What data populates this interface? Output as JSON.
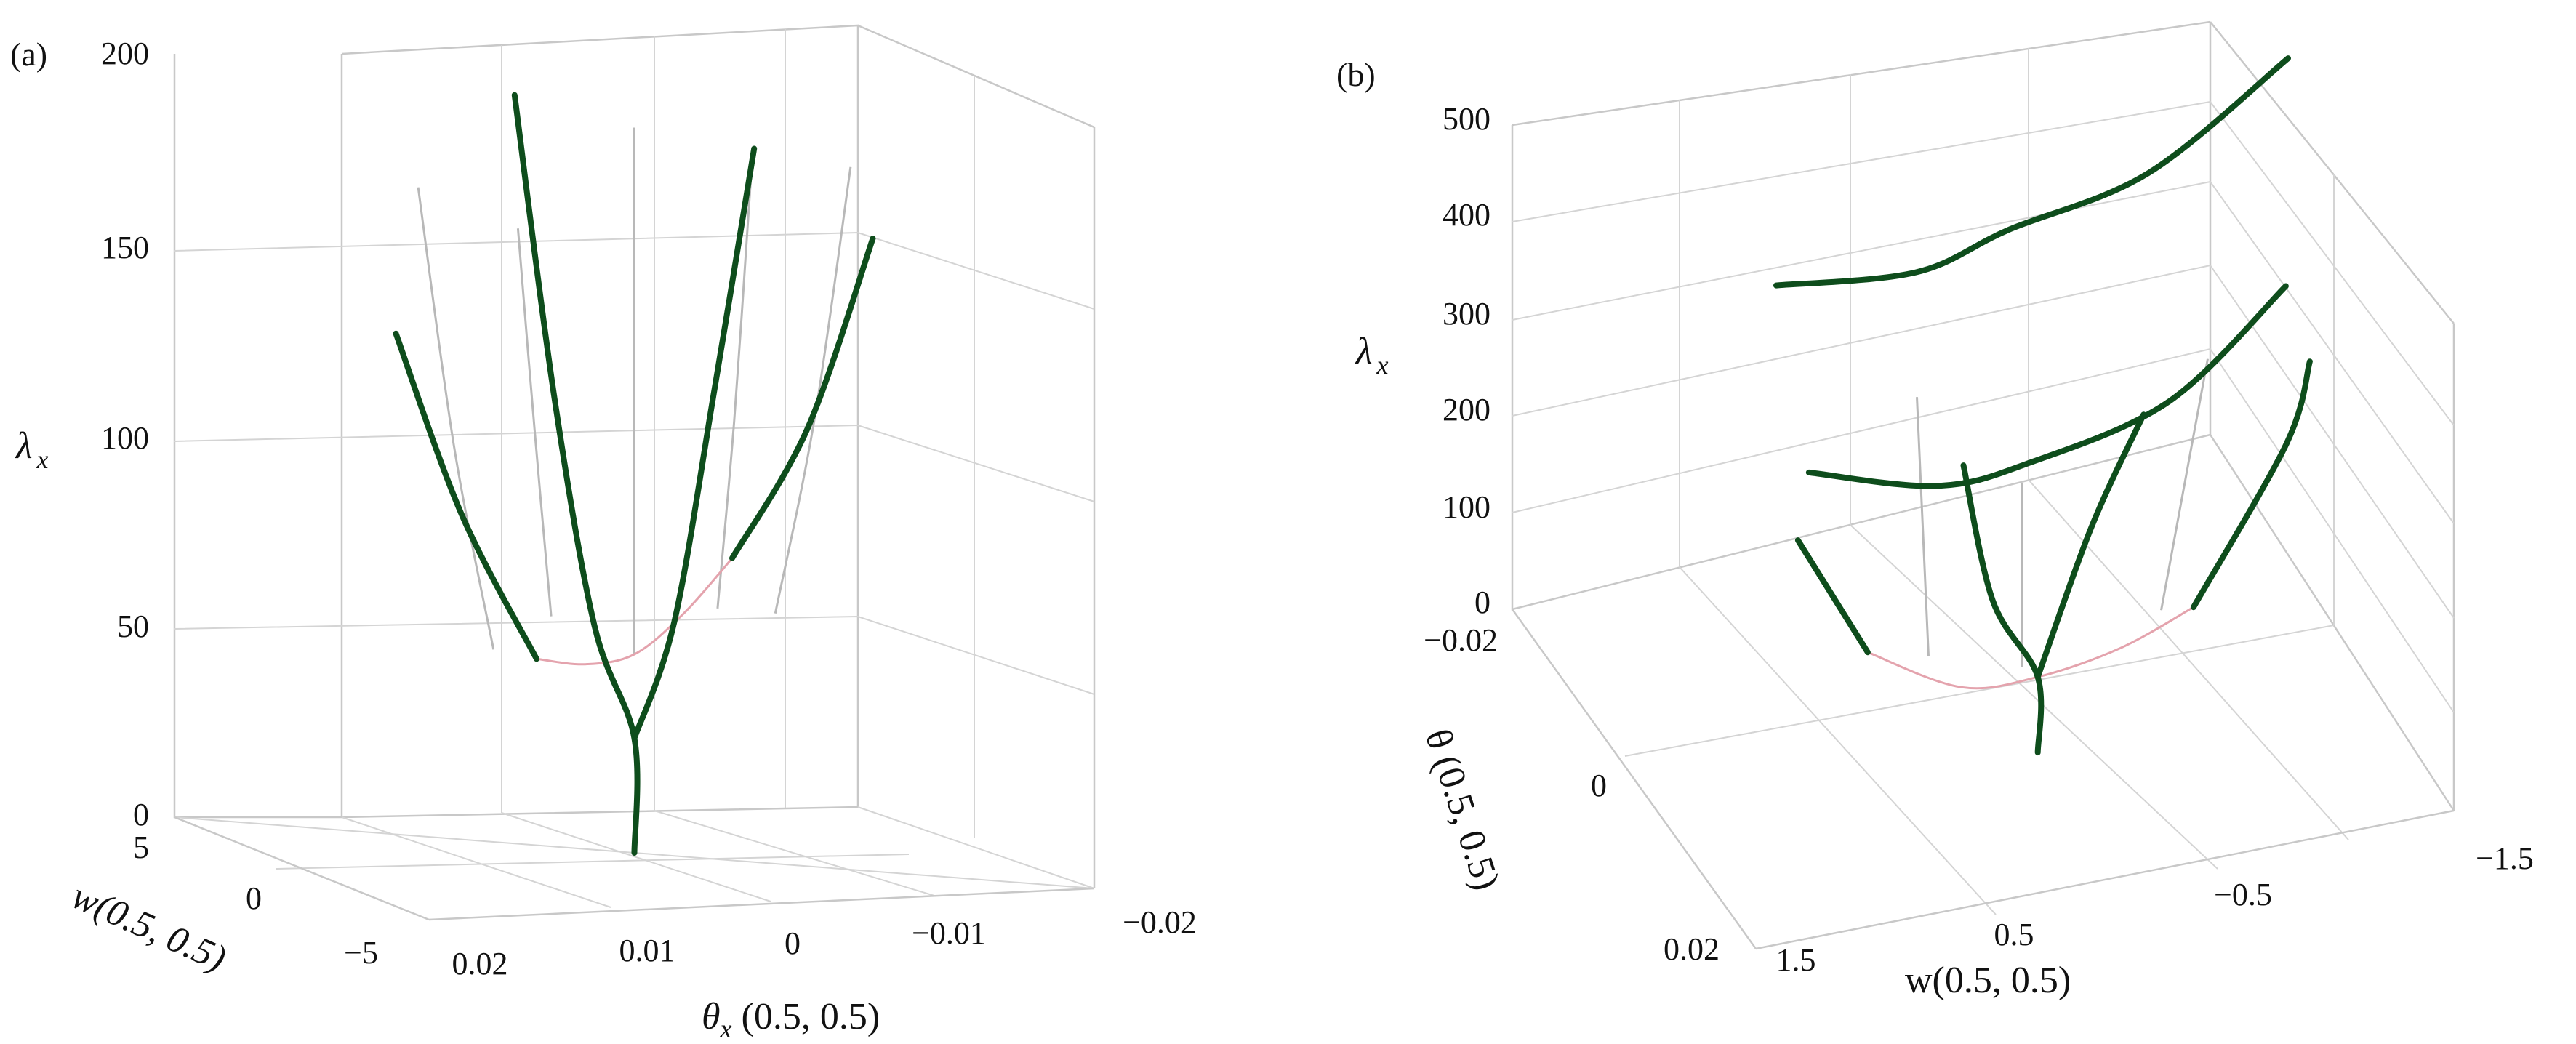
{
  "chart_data": [
    {
      "type": "line",
      "panel_label": "(a)",
      "zlabel_main": "λ",
      "zlabel_sub": "x",
      "xlabel": "θ",
      "xlabel_sub": "x",
      "xlabel_rest": " (0.5, 0.5)",
      "ylabel": "w(0.5, 0.5)",
      "z_ticks": [
        "0",
        "50",
        "100",
        "150",
        "200"
      ],
      "x_ticks": [
        "0.02",
        "0.01",
        "0",
        "−0.01",
        "−0.02"
      ],
      "y_ticks": [
        "5",
        "0",
        "−5"
      ],
      "zlim": [
        0,
        200
      ],
      "xlim": [
        0.02,
        -0.02
      ],
      "ylim": [
        5,
        -5
      ],
      "grid": true,
      "series": [
        {
          "style": "bold",
          "points": [
            [
              0,
              0,
              0
            ],
            [
              0,
              0,
              30
            ],
            [
              0.0024,
              0,
              60
            ],
            [
              0.0048,
              0,
              120
            ],
            [
              0.0072,
              0,
              200
            ]
          ]
        },
        {
          "style": "bold",
          "points": [
            [
              0,
              0,
              30
            ],
            [
              -0.0024,
              0,
              60
            ],
            [
              -0.0048,
              0,
              120
            ],
            [
              -0.0072,
              0,
              183
            ]
          ]
        },
        {
          "style": "bold",
          "points": [
            [
              0.012,
              4,
              64
            ],
            [
              0.015,
              3,
              100
            ],
            [
              0.0174,
              2,
              145
            ]
          ]
        },
        {
          "style": "bold",
          "points": [
            [
              -0.012,
              -4,
              64
            ],
            [
              -0.015,
              -3,
              100
            ],
            [
              -0.0174,
              -2,
              152
            ]
          ]
        },
        {
          "style": "thin",
          "points": [
            [
              0.01,
              1,
              58
            ],
            [
              0.0116,
              0.5,
              110
            ],
            [
              0.013,
              0,
              177
            ]
          ]
        },
        {
          "style": "thin",
          "points": [
            [
              -0.01,
              -1,
              58
            ],
            [
              -0.0116,
              -0.5,
              110
            ],
            [
              -0.013,
              0,
              177
            ]
          ]
        },
        {
          "style": "thin",
          "points": [
            [
              0,
              0,
              52
            ],
            [
              0,
              0,
              190
            ]
          ]
        },
        {
          "style": "thin",
          "points": [
            [
              0.005,
              0,
              63
            ],
            [
              0.006,
              0,
              112
            ],
            [
              0.007,
              0,
              165
            ]
          ]
        },
        {
          "style": "thin",
          "points": [
            [
              -0.005,
              0,
              63
            ],
            [
              -0.006,
              0,
              112
            ],
            [
              -0.007,
              0,
              175
            ]
          ]
        },
        {
          "style": "pink",
          "points": [
            [
              0.012,
              4,
              64
            ],
            [
              0.006,
              2,
              56
            ],
            [
              0,
              0,
              52
            ],
            [
              -0.006,
              -2,
              56
            ],
            [
              -0.012,
              -4,
              64
            ]
          ]
        }
      ]
    },
    {
      "type": "line",
      "panel_label": "(b)",
      "zlabel_main": "λ",
      "zlabel_sub": "x",
      "xlabel": "w(0.5, 0.5)",
      "ylabel": "θ (0.5, 0.5)",
      "z_ticks": [
        "0",
        "100",
        "200",
        "300",
        "400",
        "500"
      ],
      "x_ticks": [
        "1.5",
        "0.5",
        "−0.5",
        "−1.5"
      ],
      "y_ticks": [
        "−0.02",
        "0",
        "0.02"
      ],
      "zlim": [
        0,
        500
      ],
      "xlim": [
        1.5,
        -1.5
      ],
      "ylim": [
        -0.02,
        0.02
      ],
      "grid": true,
      "series": [
        {
          "style": "bold",
          "points": [
            [
              0.05,
              0.0015,
              0
            ],
            [
              0.05,
              0.0015,
              78
            ],
            [
              0.25,
              0.002,
              170
            ],
            [
              0.35,
              0,
              300
            ]
          ]
        },
        {
          "style": "bold",
          "points": [
            [
              0.05,
              0.0015,
              78
            ],
            [
              -0.2,
              0,
              210
            ],
            [
              -0.45,
              -0.002,
              300
            ]
          ]
        },
        {
          "style": "bold",
          "points": [
            [
              1.0,
              -0.012,
              430
            ],
            [
              0.4,
              -0.012,
              415
            ],
            [
              0,
              -0.012,
              440
            ],
            [
              -0.6,
              -0.012,
              470
            ],
            [
              -1.2,
              -0.012,
              560
            ]
          ]
        },
        {
          "style": "bold",
          "points": [
            [
              0.95,
              -0.005,
              285
            ],
            [
              0.4,
              -0.005,
              245
            ],
            [
              0,
              -0.005,
              250
            ],
            [
              -0.6,
              -0.005,
              285
            ],
            [
              -1.1,
              -0.005,
              380
            ]
          ]
        },
        {
          "style": "bold",
          "points": [
            [
              1.1,
              0.003,
              280
            ],
            [
              0.8,
              0.003,
              150
            ]
          ]
        },
        {
          "style": "bold",
          "points": [
            [
              -0.6,
              0.003,
              130
            ],
            [
              -1.0,
              0.003,
              280
            ],
            [
              -1.1,
              0.003,
              360
            ]
          ]
        },
        {
          "style": "thin",
          "points": [
            [
              0.1,
              0,
              80
            ],
            [
              0.1,
              0,
              270
            ]
          ]
        },
        {
          "style": "thin",
          "points": [
            [
              0.5,
              0,
              110
            ],
            [
              0.55,
              0,
              380
            ]
          ]
        },
        {
          "style": "thin",
          "points": [
            [
              -0.5,
              0,
              110
            ],
            [
              -0.7,
              0,
              360
            ]
          ]
        },
        {
          "style": "pink",
          "points": [
            [
              0.8,
              0.003,
              150
            ],
            [
              0.4,
              0.003,
              95
            ],
            [
              0.05,
              0.0015,
              78
            ],
            [
              -0.3,
              0.002,
              95
            ],
            [
              -0.6,
              0.003,
              130
            ]
          ]
        }
      ]
    }
  ]
}
